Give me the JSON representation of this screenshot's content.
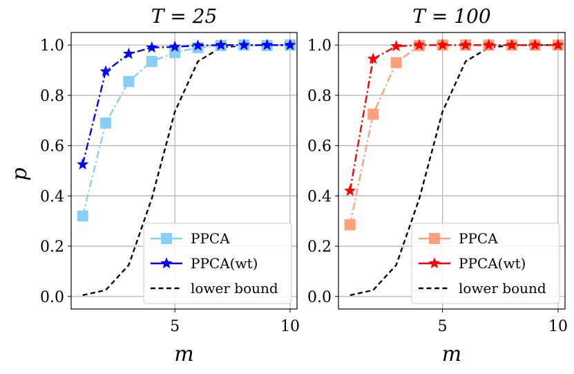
{
  "chart_data": [
    {
      "type": "line",
      "title": "T = 25",
      "xlabel": "m",
      "ylabel": "p",
      "xlim": [
        0.5,
        10.3
      ],
      "ylim": [
        -0.05,
        1.05
      ],
      "xticks": [
        5,
        10
      ],
      "xtick_labels": [
        "5",
        "10"
      ],
      "yticks": [
        0.0,
        0.2,
        0.4,
        0.6,
        0.8,
        1.0
      ],
      "ytick_labels": [
        "0.0",
        "0.2",
        "0.4",
        "0.6",
        "0.8",
        "1.0"
      ],
      "grid": true,
      "legend_position": "bottom-right",
      "series": [
        {
          "name": "PPCA",
          "color": "#87CEFA",
          "marker": "square",
          "linestyle": "dash-dot",
          "x": [
            1,
            2,
            3,
            4,
            5,
            6,
            7,
            8,
            9,
            10
          ],
          "y": [
            0.32,
            0.69,
            0.855,
            0.935,
            0.97,
            0.99,
            0.998,
            1.0,
            0.998,
            1.0
          ]
        },
        {
          "name": "PPCA(wt)",
          "color": "#0000FF",
          "marker": "star",
          "linestyle": "dash-dot",
          "x": [
            1,
            2,
            3,
            4,
            5,
            6,
            7,
            8,
            9,
            10
          ],
          "y": [
            0.525,
            0.895,
            0.965,
            0.99,
            0.993,
            0.998,
            1.0,
            1.0,
            1.0,
            1.0
          ]
        },
        {
          "name": "lower bound",
          "color": "#000000",
          "marker": "none",
          "linestyle": "dashed",
          "x": [
            1,
            2,
            3,
            4,
            5,
            6,
            7,
            8,
            9,
            10
          ],
          "y": [
            0.005,
            0.025,
            0.125,
            0.39,
            0.735,
            0.935,
            0.99,
            0.999,
            1.0,
            1.0
          ]
        }
      ]
    },
    {
      "type": "line",
      "title": "T = 100",
      "xlabel": "m",
      "ylabel": "",
      "xlim": [
        0.5,
        10.3
      ],
      "ylim": [
        -0.05,
        1.05
      ],
      "xticks": [
        5,
        10
      ],
      "xtick_labels": [
        "5",
        "10"
      ],
      "yticks": [
        0.0,
        0.2,
        0.4,
        0.6,
        0.8,
        1.0
      ],
      "ytick_labels": [
        "0.0",
        "0.2",
        "0.4",
        "0.6",
        "0.8",
        "1.0"
      ],
      "grid": true,
      "legend_position": "bottom-right",
      "series": [
        {
          "name": "PPCA",
          "color": "#FFA07A",
          "marker": "square",
          "linestyle": "dash-dot",
          "x": [
            1,
            2,
            3,
            4,
            5,
            6,
            7,
            8,
            9,
            10
          ],
          "y": [
            0.285,
            0.725,
            0.93,
            0.998,
            1.0,
            1.0,
            1.0,
            1.0,
            1.0,
            1.0
          ]
        },
        {
          "name": "PPCA(wt)",
          "color": "#FF0000",
          "marker": "star",
          "linestyle": "dash-dot",
          "x": [
            1,
            2,
            3,
            4,
            5,
            6,
            7,
            8,
            9,
            10
          ],
          "y": [
            0.42,
            0.945,
            0.995,
            1.0,
            1.0,
            1.0,
            1.0,
            1.0,
            1.0,
            1.0
          ]
        },
        {
          "name": "lower bound",
          "color": "#000000",
          "marker": "none",
          "linestyle": "dashed",
          "x": [
            1,
            2,
            3,
            4,
            5,
            6,
            7,
            8,
            9,
            10
          ],
          "y": [
            0.005,
            0.025,
            0.125,
            0.39,
            0.735,
            0.935,
            0.99,
            0.999,
            1.0,
            1.0
          ]
        }
      ]
    }
  ]
}
